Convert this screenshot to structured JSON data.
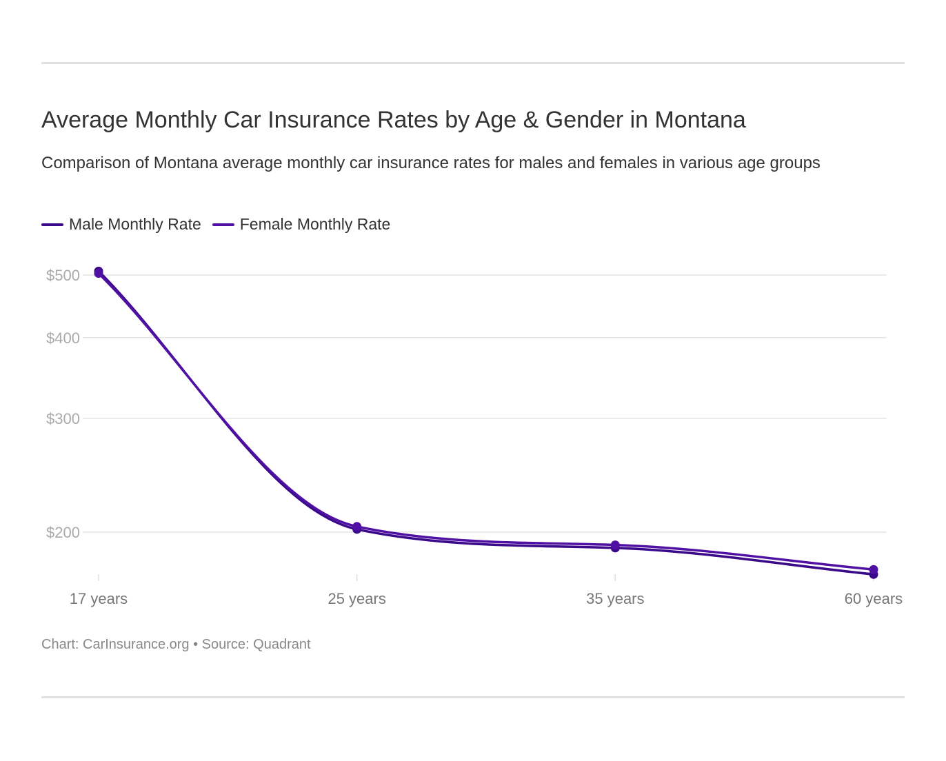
{
  "chart_data": {
    "type": "line",
    "title": "Average Monthly Car Insurance Rates by Age & Gender in Montana",
    "subtitle": "Comparison of Montana average monthly car insurance rates for males and females in various age groups",
    "categories": [
      "17 years",
      "25 years",
      "35 years",
      "60 years"
    ],
    "series": [
      {
        "name": "Male Monthly Rate",
        "color": "#3a0a8a",
        "values": [
          507,
          202,
          189,
          172
        ]
      },
      {
        "name": "Female Monthly Rate",
        "color": "#4f10a3",
        "values": [
          503,
          204,
          191,
          175
        ]
      }
    ],
    "y_scale": "log",
    "y_ticks": [
      {
        "value": 500,
        "label": "$500"
      },
      {
        "value": 400,
        "label": "$400"
      },
      {
        "value": 300,
        "label": "$300"
      },
      {
        "value": 200,
        "label": "$200"
      }
    ],
    "grid": true,
    "legend": "top-left",
    "footer": "Chart: CarInsurance.org • Source: Quadrant"
  }
}
